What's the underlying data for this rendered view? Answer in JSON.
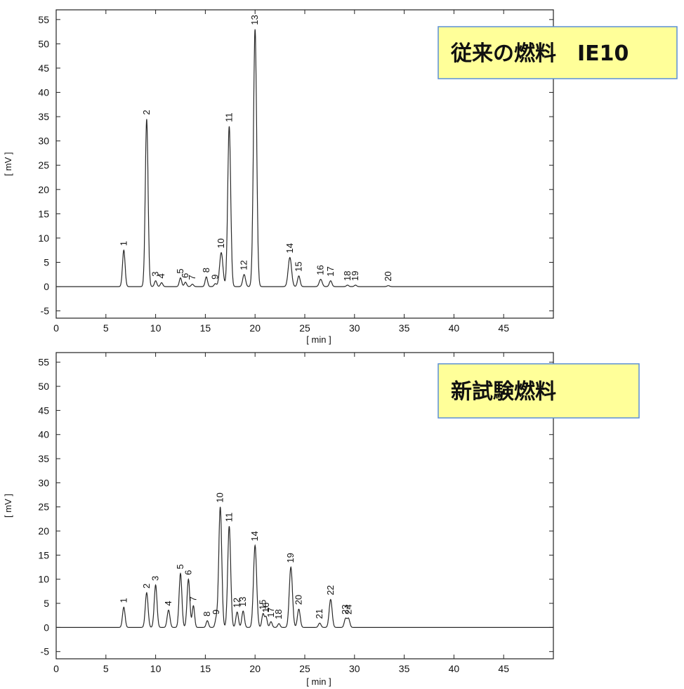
{
  "chart_data": [
    {
      "type": "line",
      "title_box": "従来の燃料　IE10",
      "xlabel": "[ min ]",
      "ylabel": "[ mV ]",
      "xlim": [
        0,
        50
      ],
      "ylim": [
        -6.5,
        57
      ],
      "xticks": [
        0,
        5,
        10,
        15,
        20,
        25,
        30,
        35,
        40,
        45
      ],
      "yticks": [
        -5,
        0,
        5,
        10,
        15,
        20,
        25,
        30,
        35,
        40,
        45,
        50,
        55
      ],
      "colors": {
        "line": "#2a2a2a",
        "box_fill": "#ffff99",
        "box_border": "#5b8fd6"
      },
      "peaks": [
        {
          "label": "1",
          "x": 6.8,
          "height": 7.5,
          "width": 0.13
        },
        {
          "label": "2",
          "x": 9.1,
          "height": 34.5,
          "width": 0.14
        },
        {
          "label": "3",
          "x": 10.0,
          "height": 1.2,
          "width": 0.12
        },
        {
          "label": "4",
          "x": 10.6,
          "height": 0.8,
          "width": 0.12
        },
        {
          "label": "5",
          "x": 12.5,
          "height": 1.8,
          "width": 0.12
        },
        {
          "label": "6",
          "x": 13.0,
          "height": 0.9,
          "width": 0.12
        },
        {
          "label": "7",
          "x": 13.7,
          "height": 0.5,
          "width": 0.12
        },
        {
          "label": "8",
          "x": 15.1,
          "height": 2.0,
          "width": 0.12
        },
        {
          "label": "9",
          "x": 16.0,
          "height": 0.6,
          "width": 0.12
        },
        {
          "label": "10",
          "x": 16.6,
          "height": 7.0,
          "width": 0.17
        },
        {
          "label": "11",
          "x": 17.4,
          "height": 33.0,
          "width": 0.15
        },
        {
          "label": "12",
          "x": 18.9,
          "height": 2.5,
          "width": 0.14
        },
        {
          "label": "13",
          "x": 20.0,
          "height": 53.0,
          "width": 0.16
        },
        {
          "label": "14",
          "x": 23.5,
          "height": 6.0,
          "width": 0.17
        },
        {
          "label": "15",
          "x": 24.4,
          "height": 2.2,
          "width": 0.13
        },
        {
          "label": "16",
          "x": 26.6,
          "height": 1.5,
          "width": 0.15
        },
        {
          "label": "17",
          "x": 27.6,
          "height": 1.2,
          "width": 0.13
        },
        {
          "label": "18",
          "x": 29.3,
          "height": 0.3,
          "width": 0.12
        },
        {
          "label": "19",
          "x": 30.1,
          "height": 0.3,
          "width": 0.12
        },
        {
          "label": "20",
          "x": 33.4,
          "height": 0.2,
          "width": 0.12
        }
      ]
    },
    {
      "type": "line",
      "title_box": "新試験燃料",
      "xlabel": "[ min ]",
      "ylabel": "[ mV ]",
      "xlim": [
        0,
        50
      ],
      "ylim": [
        -6.5,
        57
      ],
      "xticks": [
        0,
        5,
        10,
        15,
        20,
        25,
        30,
        35,
        40,
        45
      ],
      "yticks": [
        -5,
        0,
        5,
        10,
        15,
        20,
        25,
        30,
        35,
        40,
        45,
        50,
        55
      ],
      "colors": {
        "line": "#2a2a2a",
        "box_fill": "#ffff99",
        "box_border": "#5b8fd6"
      },
      "peaks": [
        {
          "label": "1",
          "x": 6.8,
          "height": 4.2,
          "width": 0.13
        },
        {
          "label": "2",
          "x": 9.1,
          "height": 7.2,
          "width": 0.14
        },
        {
          "label": "3",
          "x": 10.0,
          "height": 8.8,
          "width": 0.14
        },
        {
          "label": "4",
          "x": 11.3,
          "height": 3.6,
          "width": 0.14
        },
        {
          "label": "5",
          "x": 12.5,
          "height": 11.2,
          "width": 0.14
        },
        {
          "label": "6",
          "x": 13.3,
          "height": 10.0,
          "width": 0.14
        },
        {
          "label": "7",
          "x": 13.8,
          "height": 4.5,
          "width": 0.12
        },
        {
          "label": "8",
          "x": 15.2,
          "height": 1.4,
          "width": 0.12
        },
        {
          "label": "9",
          "x": 16.1,
          "height": 1.8,
          "width": 0.12
        },
        {
          "label": "10",
          "x": 16.5,
          "height": 25.0,
          "width": 0.15
        },
        {
          "label": "11",
          "x": 17.4,
          "height": 21.0,
          "width": 0.15
        },
        {
          "label": "12",
          "x": 18.2,
          "height": 3.2,
          "width": 0.13
        },
        {
          "label": "13",
          "x": 18.8,
          "height": 3.4,
          "width": 0.13
        },
        {
          "label": "14",
          "x": 20.0,
          "height": 17.0,
          "width": 0.16
        },
        {
          "label": "15",
          "x": 20.8,
          "height": 2.8,
          "width": 0.12
        },
        {
          "label": "16",
          "x": 21.1,
          "height": 2.2,
          "width": 0.12
        },
        {
          "label": "17",
          "x": 21.6,
          "height": 1.2,
          "width": 0.12
        },
        {
          "label": "18",
          "x": 22.4,
          "height": 0.8,
          "width": 0.12
        },
        {
          "label": "19",
          "x": 23.6,
          "height": 12.5,
          "width": 0.16
        },
        {
          "label": "20",
          "x": 24.4,
          "height": 3.8,
          "width": 0.14
        },
        {
          "label": "21",
          "x": 26.5,
          "height": 0.9,
          "width": 0.13
        },
        {
          "label": "22",
          "x": 27.6,
          "height": 5.8,
          "width": 0.15
        },
        {
          "label": "23",
          "x": 29.1,
          "height": 1.8,
          "width": 0.13
        },
        {
          "label": "24",
          "x": 29.4,
          "height": 1.8,
          "width": 0.13
        }
      ]
    }
  ]
}
